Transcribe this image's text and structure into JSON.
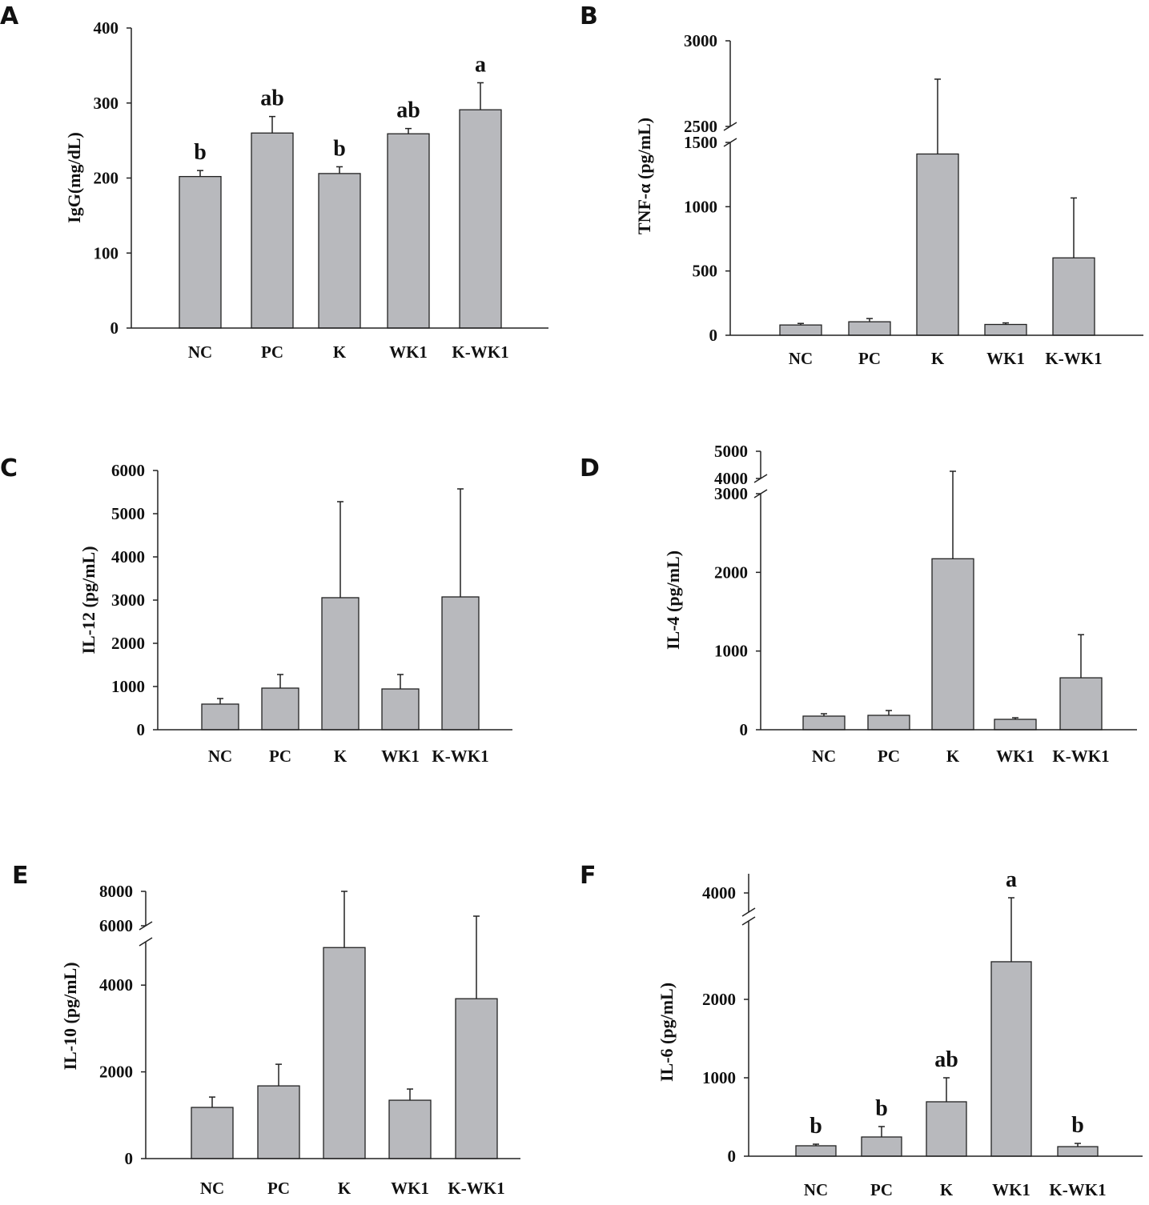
{
  "colors": {
    "bar": "#b8b9bd",
    "stroke": "#222222"
  },
  "chart_data": [
    {
      "panel": "A",
      "type": "bar",
      "ylabel": "IgG(mg/dL)",
      "categories": [
        "NC",
        "PC",
        "K",
        "WK1",
        "K-WK1"
      ],
      "values": [
        202,
        260,
        206,
        259,
        291
      ],
      "errors_upper": [
        210,
        282,
        215,
        266,
        327
      ],
      "letters": [
        "b",
        "ab",
        "b",
        "ab",
        "a"
      ],
      "yticks": [
        0,
        100,
        200,
        300,
        400
      ],
      "ylim": [
        0,
        400
      ]
    },
    {
      "panel": "B",
      "type": "bar",
      "ylabel": "TNF-α (pg/mL)",
      "categories": [
        "NC",
        "PC",
        "K",
        "WK1",
        "K-WK1"
      ],
      "values": [
        80,
        105,
        1410,
        84,
        602
      ],
      "errors_upper": [
        92,
        130,
        2776,
        96,
        1068
      ],
      "yticks": [
        0,
        500,
        1000,
        1500,
        2500,
        3000
      ],
      "axis_break": {
        "lower": [
          0,
          1500
        ],
        "upper": [
          2500,
          3000
        ]
      }
    },
    {
      "panel": "C",
      "type": "bar",
      "ylabel": "IL-12 (pg/mL)",
      "categories": [
        "NC",
        "PC",
        "K",
        "WK1",
        "K-WK1"
      ],
      "values": [
        593,
        963,
        3056,
        944,
        3074
      ],
      "errors_upper": [
        722,
        1278,
        5278,
        1278,
        5574
      ],
      "yticks": [
        0,
        1000,
        2000,
        3000,
        4000,
        5000,
        6000
      ],
      "ylim": [
        0,
        6000
      ]
    },
    {
      "panel": "D",
      "type": "bar",
      "ylabel": "IL-4 (pg/mL)",
      "categories": [
        "NC",
        "PC",
        "K",
        "WK1",
        "K-WK1"
      ],
      "values": [
        173,
        183,
        2173,
        132,
        660
      ],
      "errors_upper": [
        203,
        244,
        4265,
        152,
        1208
      ],
      "yticks": [
        0,
        1000,
        2000,
        3000,
        4000,
        5000
      ],
      "axis_break": {
        "lower": [
          0,
          3000
        ],
        "upper": [
          4000,
          5000
        ]
      }
    },
    {
      "panel": "E",
      "type": "bar",
      "ylabel": "IL-10 (pg/mL)",
      "categories": [
        "NC",
        "PC",
        "K",
        "WK1",
        "K-WK1"
      ],
      "values": [
        1180,
        1677,
        4866,
        1346,
        3687
      ],
      "errors_upper": [
        1419,
        2175,
        8465,
        1604,
        6558
      ],
      "yticks": [
        0,
        2000,
        4000,
        6000,
        8000
      ],
      "axis_break": {
        "lower": [
          0,
          5000
        ],
        "upper": [
          6000,
          8000
        ]
      }
    },
    {
      "panel": "F",
      "type": "bar",
      "ylabel": "IL-6 (pg/mL)",
      "categories": [
        "NC",
        "PC",
        "K",
        "WK1",
        "K-WK1"
      ],
      "values": [
        133,
        245,
        694,
        2480,
        122
      ],
      "errors_upper": [
        153,
        378,
        1000,
        3950,
        163
      ],
      "letters": [
        "b",
        "b",
        "ab",
        "a",
        "b"
      ],
      "yticks": [
        0,
        1000,
        2000,
        4000
      ],
      "axis_break": {
        "lower": [
          0,
          3000
        ],
        "upper": [
          3800,
          4200
        ]
      }
    }
  ]
}
